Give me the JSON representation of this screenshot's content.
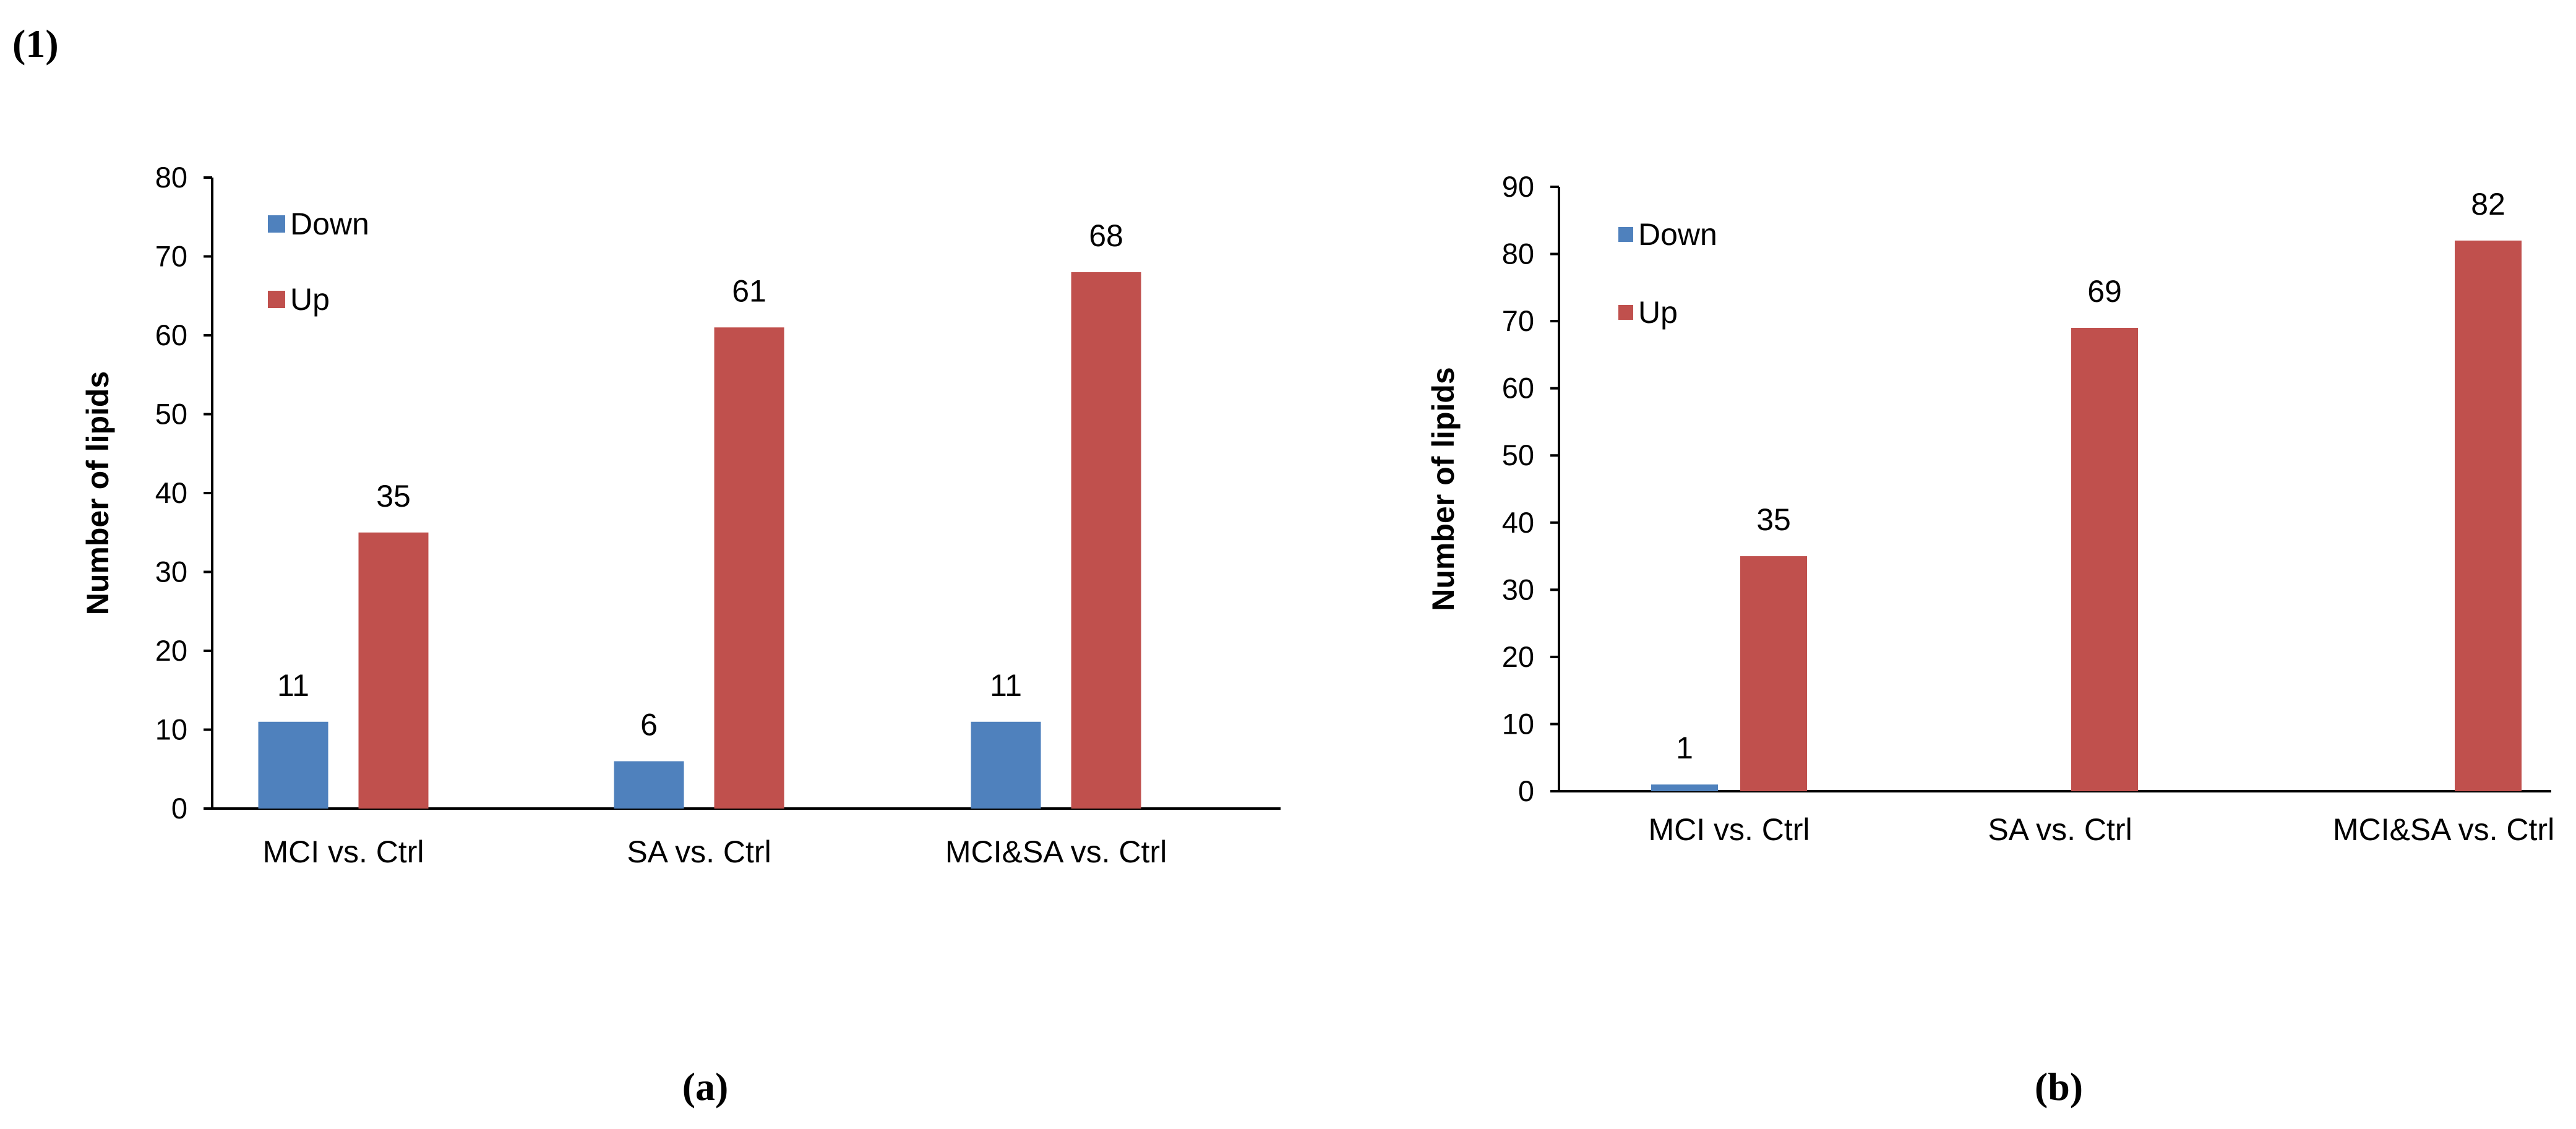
{
  "figure_label": "(1)",
  "panel_labels": [
    "(a)",
    "(b)"
  ],
  "colors": {
    "down": "#4f81bd",
    "up": "#c0504d"
  },
  "chart_data": [
    {
      "type": "bar",
      "ylabel": "Number of lipids",
      "xlabel": "",
      "ylim": [
        0,
        80
      ],
      "yticks": [
        0,
        10,
        20,
        30,
        40,
        50,
        60,
        70,
        80
      ],
      "categories": [
        "MCI vs. Ctrl",
        "SA vs. Ctrl",
        "MCI&SA vs. Ctrl"
      ],
      "series": [
        {
          "name": "Down",
          "values": [
            11,
            6,
            11
          ]
        },
        {
          "name": "Up",
          "values": [
            35,
            61,
            68
          ]
        }
      ],
      "data_labels": {
        "Down": [
          "11",
          "6",
          "11"
        ],
        "Up": [
          "35",
          "61",
          "68"
        ]
      },
      "legend": "top-left",
      "grid": false
    },
    {
      "type": "bar",
      "ylabel": "Number of lipids",
      "xlabel": "",
      "ylim": [
        0,
        90
      ],
      "yticks": [
        0,
        10,
        20,
        30,
        40,
        50,
        60,
        70,
        80,
        90
      ],
      "categories": [
        "MCI vs. Ctrl",
        "SA vs. Ctrl",
        "MCI&SA vs. Ctrl"
      ],
      "series": [
        {
          "name": "Down",
          "values": [
            1,
            0,
            0
          ]
        },
        {
          "name": "Up",
          "values": [
            35,
            69,
            82
          ]
        }
      ],
      "data_labels": {
        "Down": [
          "1",
          "",
          ""
        ],
        "Up": [
          "35",
          "69",
          "82"
        ]
      },
      "legend": "top-left",
      "grid": false
    }
  ]
}
